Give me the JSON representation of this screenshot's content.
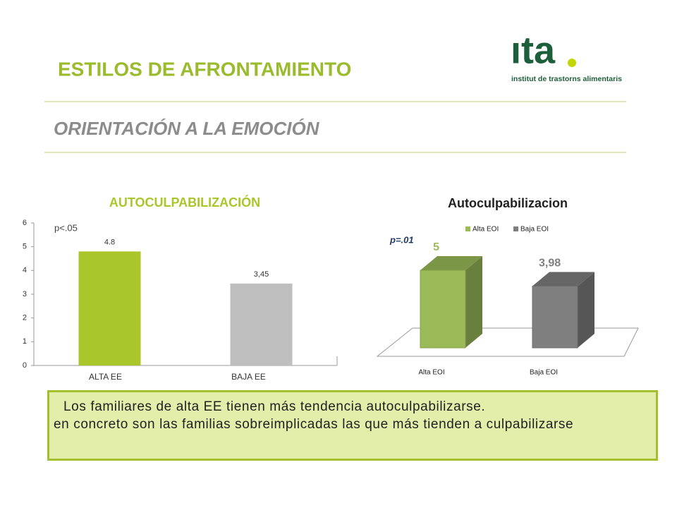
{
  "header": {
    "title": "ESTILOS DE AFRONTAMIENTO",
    "subtitle": "ORIENTACIÓN A LA EMOCIÓN"
  },
  "logo": {
    "mark": "ıta",
    "tagline": "institut de trastorns alimentaris"
  },
  "chart_data": [
    {
      "type": "bar",
      "title": "AUTOCULPABILIZACIÓN",
      "annotation": "p<.05",
      "categories": [
        "ALTA EE",
        "BAJA EE"
      ],
      "values": [
        4.8,
        3.45
      ],
      "value_labels": [
        "4.8",
        "3,45"
      ],
      "colors": [
        "#a9c62b",
        "#bfbfbf"
      ],
      "ylim": [
        0,
        6
      ],
      "yticks": [
        0,
        1,
        2,
        3,
        4,
        5,
        6
      ]
    },
    {
      "type": "bar3d",
      "title": "Autoculpabilizacion",
      "annotation": "p=.01",
      "categories": [
        "Alta EOI",
        "Baja EOI"
      ],
      "series": [
        {
          "name": "Alta EOI",
          "color": "#9bbb59",
          "values": [
            5,
            null
          ],
          "value_labels": [
            "5",
            null
          ]
        },
        {
          "name": "Baja EOI",
          "color": "#7f7f7f",
          "values": [
            null,
            3.98
          ],
          "value_labels": [
            null,
            "3,98"
          ]
        }
      ],
      "ylim": [
        0,
        6
      ]
    }
  ],
  "footer": {
    "lines": [
      "Los familiares de alta EE tienen más tendencia autoculpabilizarse.",
      "en concreto son las familias sobreimplicadas las que más tienden a culpabilizarse"
    ]
  }
}
